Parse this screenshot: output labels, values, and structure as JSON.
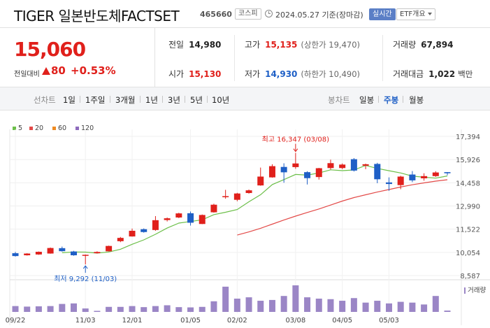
{
  "header": {
    "name": "TIGER 일본반도체FACTSET",
    "code": "465660",
    "market_badge": "코스피",
    "date_text": "2024.05.27 기준(장마감)",
    "realtime_label": "실시간",
    "etf_menu_label": "ETF개요"
  },
  "price": {
    "current": "15,060",
    "compare_label": "전일대비",
    "change": "80",
    "change_pct": "+0.53%"
  },
  "info": {
    "prev_close": {
      "label": "전일",
      "value": "14,980"
    },
    "high": {
      "label": "고가",
      "value": "15,135",
      "sub": "(상한가 19,470)"
    },
    "volume": {
      "label": "거래량",
      "value": "67,894"
    },
    "open": {
      "label": "시가",
      "value": "15,130"
    },
    "low": {
      "label": "저가",
      "value": "14,930",
      "sub": "(하한가 10,490)"
    },
    "trade_amount": {
      "label": "거래대금",
      "value": "1,022",
      "unit": "백만"
    }
  },
  "line_chart": {
    "label": "선차트",
    "periods": [
      "1일",
      "1주일",
      "3개월",
      "1년",
      "3년",
      "5년",
      "10년"
    ]
  },
  "candle_chart": {
    "label": "봉차트",
    "types": [
      "일봉",
      "주봉",
      "월봉"
    ],
    "active": "주봉"
  },
  "colors": {
    "up": "#e0201b",
    "down": "#1e5fc6",
    "ma5": "#6cbf49",
    "ma20": "#e34a48",
    "ma60": "#ef8b22",
    "ma120": "#8e6bbd",
    "volume": "#9b86c6"
  },
  "chart_data": {
    "type": "candlestick",
    "legend": [
      "5",
      "20",
      "60",
      "120"
    ],
    "y_ticks": [
      "17,394",
      "15,926",
      "14,458",
      "12,990",
      "11,522",
      "10,054",
      "8,587"
    ],
    "y_tick_values": [
      17394,
      15926,
      14458,
      12990,
      11522,
      10054,
      8587
    ],
    "ylim": [
      8587,
      17394
    ],
    "x_ticks": [
      {
        "label": "09/22",
        "index": 0
      },
      {
        "label": "11/03",
        "index": 6
      },
      {
        "label": "12/01",
        "index": 10
      },
      {
        "label": "01/05",
        "index": 15
      },
      {
        "label": "02/02",
        "index": 19
      },
      {
        "label": "03/08",
        "index": 24
      },
      {
        "label": "04/05",
        "index": 28
      },
      {
        "label": "05/03",
        "index": 32
      }
    ],
    "annotations": {
      "high": {
        "text": "최고 16,347 (03/08)",
        "value": 16347,
        "index": 24
      },
      "low": {
        "text": "최저 9,292 (11/03)",
        "value": 9292,
        "index": 6
      }
    },
    "volume_label": "거래량",
    "candles": [
      {
        "o": 10000,
        "h": 10080,
        "l": 9790,
        "c": 9820
      },
      {
        "o": 9870,
        "h": 10000,
        "l": 9850,
        "c": 9980
      },
      {
        "o": 9920,
        "h": 10110,
        "l": 9900,
        "c": 10090
      },
      {
        "o": 9980,
        "h": 10360,
        "l": 9970,
        "c": 10330
      },
      {
        "o": 10320,
        "h": 10420,
        "l": 10100,
        "c": 10130
      },
      {
        "o": 10110,
        "h": 10150,
        "l": 9840,
        "c": 9870
      },
      {
        "o": 9870,
        "h": 9920,
        "l": 9292,
        "c": 9900
      },
      {
        "o": 10000,
        "h": 10120,
        "l": 9980,
        "c": 10080
      },
      {
        "o": 10120,
        "h": 10480,
        "l": 10110,
        "c": 10460
      },
      {
        "o": 10760,
        "h": 11030,
        "l": 10700,
        "c": 10970
      },
      {
        "o": 11060,
        "h": 11560,
        "l": 11050,
        "c": 11420
      },
      {
        "o": 11520,
        "h": 11570,
        "l": 11300,
        "c": 11340
      },
      {
        "o": 11470,
        "h": 12350,
        "l": 11420,
        "c": 12090
      },
      {
        "o": 12100,
        "h": 12260,
        "l": 12010,
        "c": 12210
      },
      {
        "o": 12260,
        "h": 12560,
        "l": 12220,
        "c": 12520
      },
      {
        "o": 12530,
        "h": 12640,
        "l": 11750,
        "c": 11930
      },
      {
        "o": 11850,
        "h": 12450,
        "l": 11840,
        "c": 12420
      },
      {
        "o": 12590,
        "h": 13130,
        "l": 12570,
        "c": 13070
      },
      {
        "o": 13610,
        "h": 14010,
        "l": 13450,
        "c": 13610
      },
      {
        "o": 13380,
        "h": 13820,
        "l": 13290,
        "c": 13780
      },
      {
        "o": 13810,
        "h": 14030,
        "l": 13770,
        "c": 13980
      },
      {
        "o": 14290,
        "h": 15420,
        "l": 14270,
        "c": 14850
      },
      {
        "o": 14800,
        "h": 15630,
        "l": 14780,
        "c": 15510
      },
      {
        "o": 15460,
        "h": 15690,
        "l": 14460,
        "c": 15120
      },
      {
        "o": 15450,
        "h": 16347,
        "l": 15340,
        "c": 15680
      },
      {
        "o": 15130,
        "h": 15190,
        "l": 14350,
        "c": 14750
      },
      {
        "o": 14820,
        "h": 15400,
        "l": 14660,
        "c": 15380
      },
      {
        "o": 15390,
        "h": 15920,
        "l": 15300,
        "c": 15700
      },
      {
        "o": 15390,
        "h": 15680,
        "l": 15320,
        "c": 15610
      },
      {
        "o": 15950,
        "h": 16020,
        "l": 15170,
        "c": 15230
      },
      {
        "o": 15540,
        "h": 15670,
        "l": 15320,
        "c": 15630
      },
      {
        "o": 15650,
        "h": 15720,
        "l": 14430,
        "c": 14680
      },
      {
        "o": 14480,
        "h": 14800,
        "l": 13950,
        "c": 14380
      },
      {
        "o": 14310,
        "h": 14900,
        "l": 14050,
        "c": 14850
      },
      {
        "o": 14980,
        "h": 15200,
        "l": 14500,
        "c": 14610
      },
      {
        "o": 14740,
        "h": 15060,
        "l": 14590,
        "c": 14880
      },
      {
        "o": 14880,
        "h": 15190,
        "l": 14830,
        "c": 15110
      },
      {
        "o": 15130,
        "h": 15135,
        "l": 14930,
        "c": 15060
      }
    ],
    "ma5": [
      null,
      null,
      null,
      null,
      10030,
      10080,
      10070,
      10008,
      10078,
      10252,
      10566,
      10842,
      11196,
      11594,
      11906,
      12006,
      12114,
      12442,
      12592,
      12764,
      13254,
      13702,
      14346,
      14658,
      14988,
      14942,
      15078,
      15278,
      15224,
      15268,
      15552,
      15368,
      15220,
      15078,
      14880,
      14808,
      14750,
      14890
    ],
    "ma20": [
      null,
      null,
      null,
      null,
      null,
      null,
      null,
      null,
      null,
      null,
      null,
      null,
      null,
      null,
      null,
      null,
      null,
      null,
      null,
      11150,
      11350,
      11580,
      11840,
      12100,
      12350,
      12580,
      12800,
      13050,
      13300,
      13520,
      13700,
      13870,
      14030,
      14190,
      14330,
      14450,
      14560,
      14650
    ],
    "volume_rel": [
      0.22,
      0.2,
      0.21,
      0.22,
      0.3,
      0.32,
      0.13,
      0.04,
      0.19,
      0.19,
      0.22,
      0.18,
      0.22,
      0.25,
      0.18,
      0.17,
      0.19,
      0.4,
      0.95,
      0.5,
      0.55,
      0.42,
      0.45,
      0.6,
      1.0,
      0.55,
      0.5,
      0.48,
      0.42,
      0.52,
      0.35,
      0.42,
      0.32,
      0.38,
      0.35,
      0.28,
      0.6,
      0.05
    ]
  }
}
